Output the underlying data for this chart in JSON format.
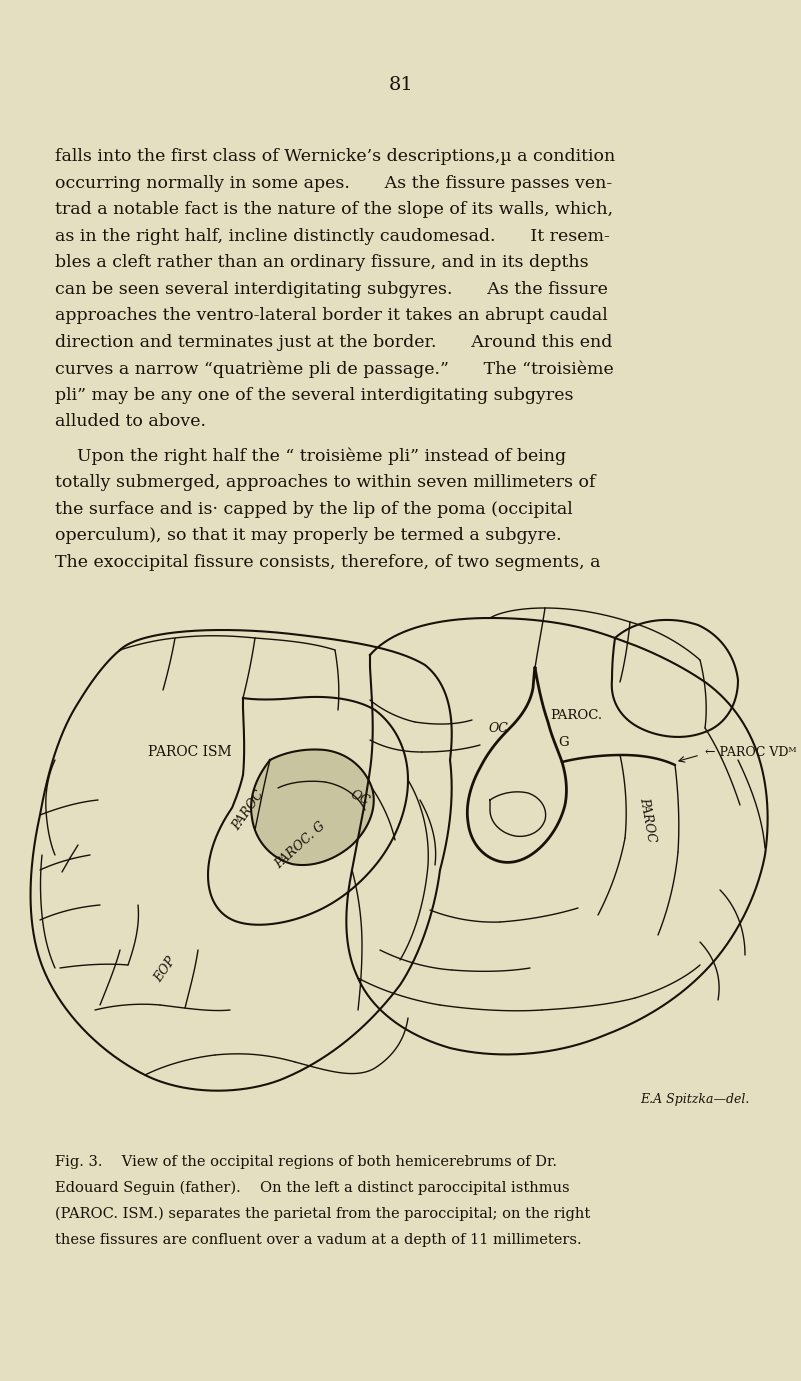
{
  "background_color": "#e3dfc0",
  "text_color": "#1a1008",
  "page_number": "81",
  "line1": "falls into the first class of Wernicke’s descriptions,µ a condition",
  "line2": "occurring normally in some apes.  As the fissure passes ven-",
  "line3": "trad a notable fact is the nature of the slope of its walls, which,",
  "line4": "as in the right half, incline distinctly caudomesad.  It resem-",
  "line5": "bles a cleft rather than an ordinary fissure, and in its depths",
  "line6": "can be seen several interdigitating subgyres.  As the fissure",
  "line7": "approaches the ventro-lateral border it takes an abrupt caudal",
  "line8": "direction and terminates just at the border.  Around this end",
  "line9": "curves a narrow “quatrième pli de passage.”  The “troisième",
  "line10": "pli” may be any one of the several interdigitating subgyres",
  "line11": "alluded to above.",
  "line12": "    Upon the right half the “ troisième pli” instead of being",
  "line13": "totally submerged, approaches to within seven millimeters of",
  "line14": "the surface and is· capped by the lip of the poma (occipital",
  "line15": "operculum), so that it may properly be termed a subgyre.",
  "line16": "The exoccipital fissure consists, therefore, of two segments, a",
  "cap1": "Fig. 3.  View of the occipital regions of both hemicerebrums of Dr.",
  "cap2": "Edouard Seguin (father).  On the left a distinct paroccipital isthmus",
  "cap3": "(PAROC. ISM.) separates the parietal from the paroccipital; on the right",
  "cap4": "these fissures are confluent over a vadum at a depth of 11 millimeters.",
  "signature": "E.A Spitzka—del."
}
